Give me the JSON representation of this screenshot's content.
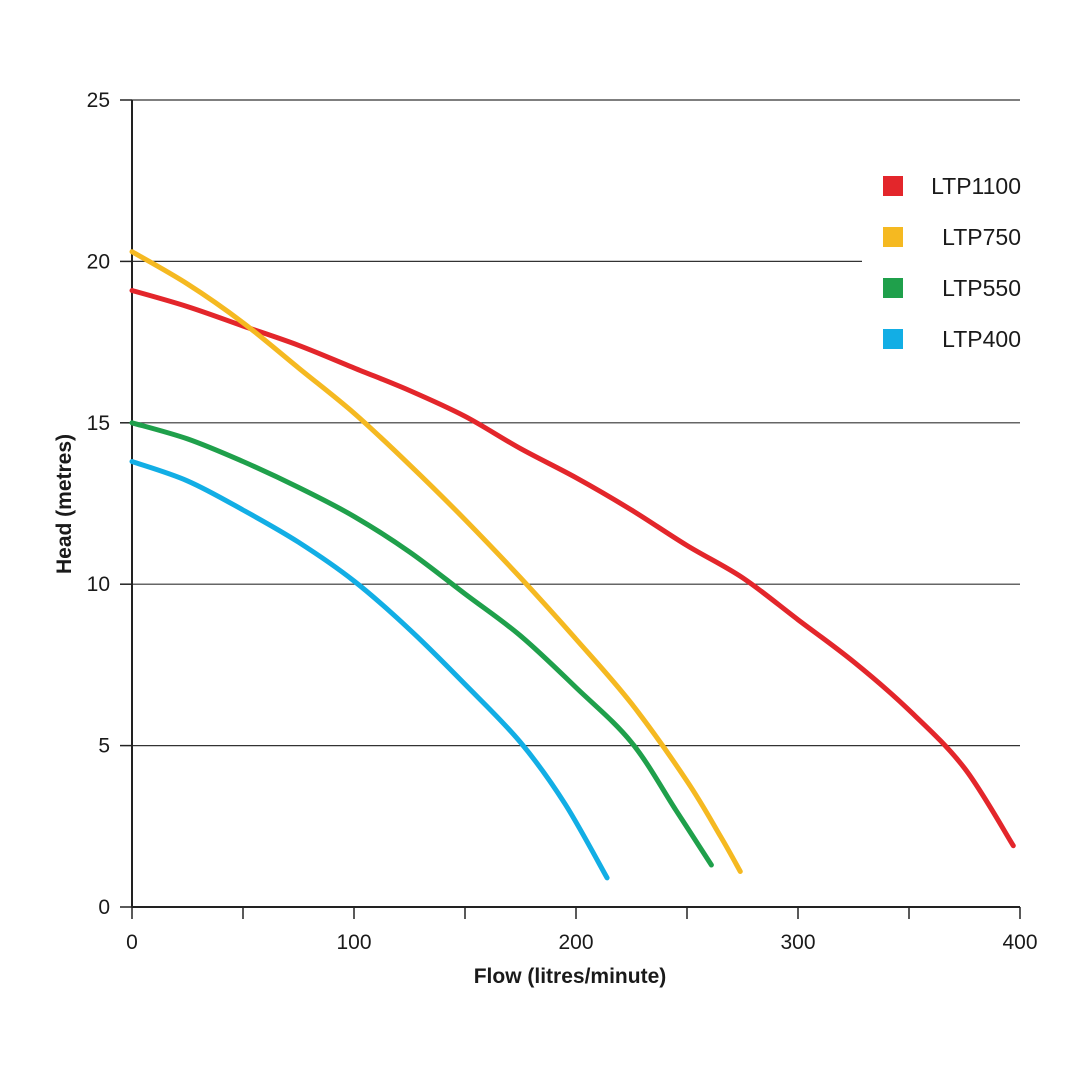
{
  "chart_data": {
    "type": "line",
    "xlabel": "Flow (litres/minute)",
    "ylabel": "Head (metres)",
    "xlim": [
      0,
      400
    ],
    "ylim": [
      0,
      25
    ],
    "x_ticks": [
      0,
      100,
      200,
      300,
      400
    ],
    "x_minor_ticks": [
      50,
      150,
      250,
      350
    ],
    "y_ticks": [
      0,
      5,
      10,
      15,
      20,
      25
    ],
    "grid": "horizontal",
    "legend_position": "top-right",
    "series": [
      {
        "name": "LTP1100",
        "color": "#e3262b",
        "points": [
          [
            0,
            19.1
          ],
          [
            25,
            18.6
          ],
          [
            50,
            18.0
          ],
          [
            75,
            17.4
          ],
          [
            100,
            16.7
          ],
          [
            125,
            16.0
          ],
          [
            150,
            15.2
          ],
          [
            175,
            14.2
          ],
          [
            200,
            13.3
          ],
          [
            225,
            12.3
          ],
          [
            250,
            11.2
          ],
          [
            275,
            10.2
          ],
          [
            300,
            8.9
          ],
          [
            325,
            7.6
          ],
          [
            350,
            6.1
          ],
          [
            375,
            4.3
          ],
          [
            397,
            1.9
          ]
        ]
      },
      {
        "name": "LTP750",
        "color": "#f5b921",
        "points": [
          [
            0,
            20.3
          ],
          [
            25,
            19.3
          ],
          [
            50,
            18.1
          ],
          [
            75,
            16.7
          ],
          [
            100,
            15.3
          ],
          [
            125,
            13.7
          ],
          [
            150,
            12.0
          ],
          [
            175,
            10.2
          ],
          [
            200,
            8.3
          ],
          [
            225,
            6.3
          ],
          [
            250,
            3.9
          ],
          [
            265,
            2.2
          ],
          [
            274,
            1.1
          ]
        ]
      },
      {
        "name": "LTP550",
        "color": "#1fa04b",
        "points": [
          [
            0,
            15.0
          ],
          [
            25,
            14.5
          ],
          [
            50,
            13.8
          ],
          [
            75,
            13.0
          ],
          [
            100,
            12.1
          ],
          [
            125,
            11.0
          ],
          [
            150,
            9.7
          ],
          [
            175,
            8.4
          ],
          [
            200,
            6.8
          ],
          [
            225,
            5.1
          ],
          [
            245,
            3.0
          ],
          [
            261,
            1.3
          ]
        ]
      },
      {
        "name": "LTP400",
        "color": "#12aee5",
        "points": [
          [
            0,
            13.8
          ],
          [
            25,
            13.2
          ],
          [
            50,
            12.3
          ],
          [
            75,
            11.3
          ],
          [
            100,
            10.1
          ],
          [
            125,
            8.6
          ],
          [
            150,
            6.9
          ],
          [
            175,
            5.1
          ],
          [
            195,
            3.2
          ],
          [
            214,
            0.9
          ]
        ]
      }
    ]
  }
}
